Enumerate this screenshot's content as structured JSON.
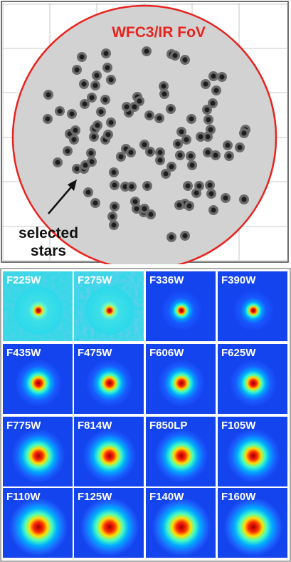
{
  "fov": {
    "title": "WFC3/IR FoV",
    "annotation_line1": "selected",
    "annotation_line2": "stars",
    "circle_color": "#e8231e",
    "fill_color": "#d2d2d2",
    "star_color": "#2a2a2a",
    "grid": true,
    "grid_ticks": 6
  },
  "filters": [
    {
      "label": "F225W",
      "style": "noisy-cyan"
    },
    {
      "label": "F275W",
      "style": "noisy-cyan"
    },
    {
      "label": "F336W",
      "style": "compact"
    },
    {
      "label": "F390W",
      "style": "compact"
    },
    {
      "label": "F435W",
      "style": "medium"
    },
    {
      "label": "F475W",
      "style": "medium"
    },
    {
      "label": "F606W",
      "style": "medium"
    },
    {
      "label": "F625W",
      "style": "medium"
    },
    {
      "label": "F775W",
      "style": "wide"
    },
    {
      "label": "F814W",
      "style": "wide"
    },
    {
      "label": "F850LP",
      "style": "wide"
    },
    {
      "label": "F105W",
      "style": "wide"
    },
    {
      "label": "F110W",
      "style": "wider"
    },
    {
      "label": "F125W",
      "style": "wider"
    },
    {
      "label": "F140W",
      "style": "wider"
    },
    {
      "label": "F160W",
      "style": "wider"
    }
  ]
}
